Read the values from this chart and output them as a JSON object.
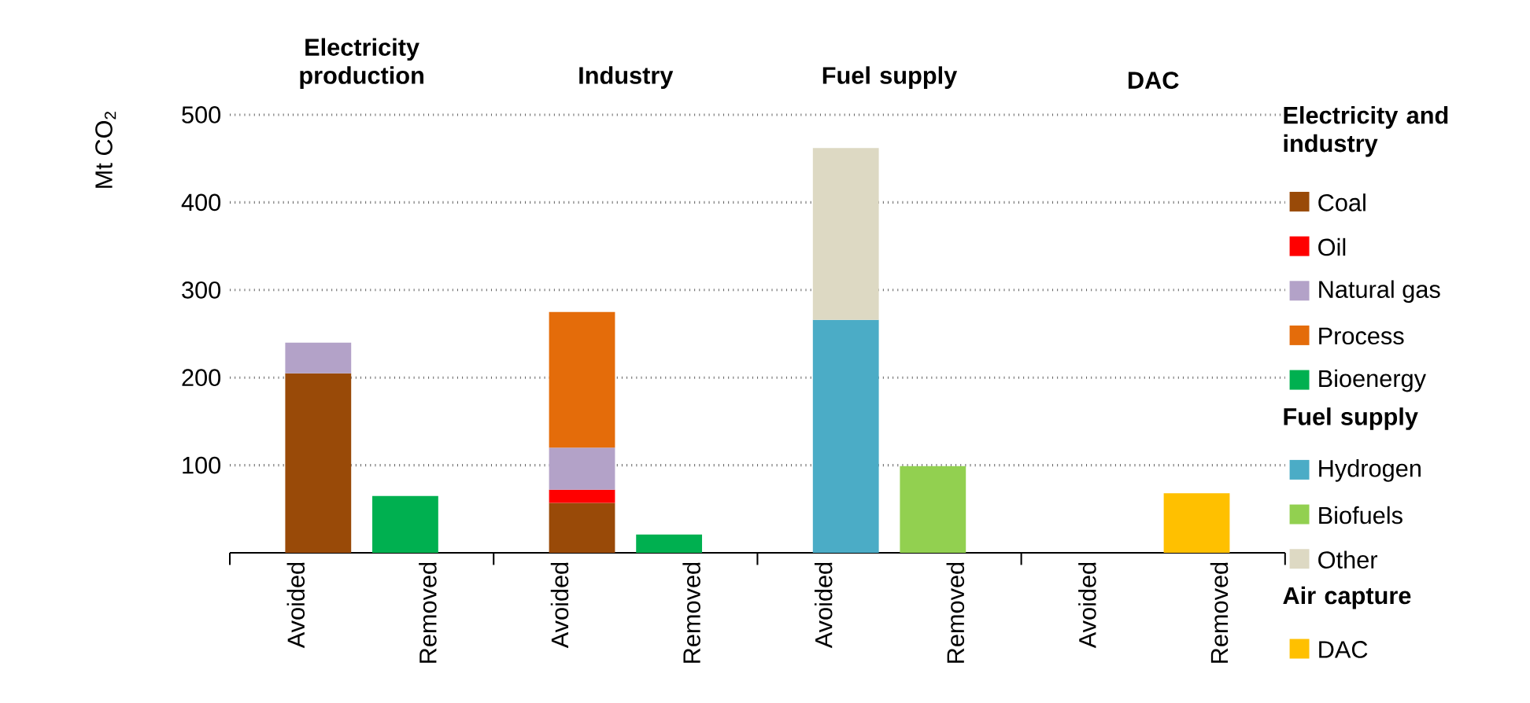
{
  "chart_data": {
    "type": "bar",
    "stacked": true,
    "categories": [
      "Avoided",
      "Removed",
      "Avoided",
      "Removed",
      "Avoided",
      "Removed",
      "Avoided",
      "Removed"
    ],
    "series": [
      {
        "name": "Coal",
        "color": "#994a08",
        "values": [
          205,
          null,
          57,
          null,
          null,
          null,
          null,
          null
        ]
      },
      {
        "name": "Oil",
        "color": "#ff0000",
        "values": [
          null,
          null,
          15,
          null,
          null,
          null,
          null,
          null
        ]
      },
      {
        "name": "Natural gas",
        "color": "#b3a2c8",
        "values": [
          35,
          null,
          48,
          null,
          null,
          null,
          null,
          null
        ]
      },
      {
        "name": "Process",
        "color": "#e46c0a",
        "values": [
          null,
          null,
          155,
          null,
          null,
          null,
          null,
          null
        ]
      },
      {
        "name": "Bioenergy",
        "color": "#00b050",
        "values": [
          null,
          65,
          null,
          21,
          null,
          null,
          null,
          null
        ]
      },
      {
        "name": "Hydrogen",
        "color": "#4bacc6",
        "values": [
          null,
          null,
          null,
          null,
          266,
          null,
          null,
          null
        ]
      },
      {
        "name": "Biofuels",
        "color": "#92d050",
        "values": [
          null,
          null,
          null,
          null,
          null,
          99,
          null,
          null
        ]
      },
      {
        "name": "Other",
        "color": "#ddd9c3",
        "values": [
          null,
          null,
          null,
          null,
          196,
          null,
          null,
          null
        ]
      },
      {
        "name": "DAC",
        "color": "#ffc000",
        "values": [
          null,
          null,
          null,
          null,
          null,
          null,
          null,
          68
        ]
      }
    ],
    "ylim": [
      0,
      500
    ],
    "yticks": [
      100,
      200,
      300,
      400,
      500
    ],
    "ylabel": "Mt CO$_{2}$",
    "grid": "y",
    "legend": "right",
    "annotations": [
      "Electricity production",
      "Industry",
      "Fuel supply",
      "DAC",
      "Electricity and industry",
      "Fuel supply",
      "Air capture"
    ]
  }
}
